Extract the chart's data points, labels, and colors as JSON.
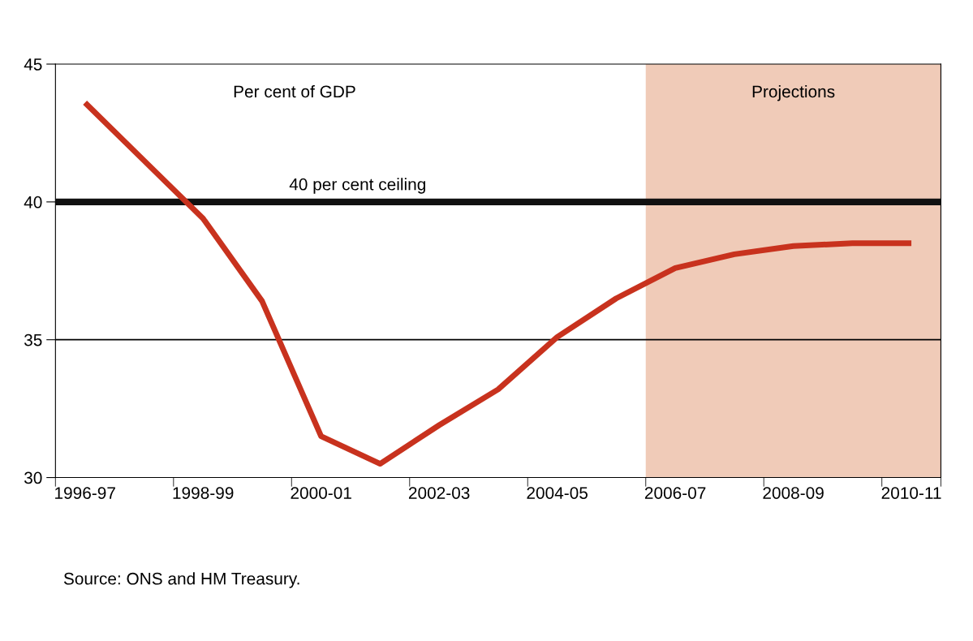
{
  "chart_data": {
    "type": "line",
    "categories": [
      "1996-97",
      null,
      "1998-99",
      null,
      "2000-01",
      null,
      "2002-03",
      null,
      "2004-05",
      null,
      "2006-07",
      null,
      "2008-09",
      null,
      "2010-11"
    ],
    "series": [
      {
        "color": "#c8321e",
        "values": [
          43.6,
          41.5,
          39.4,
          36.4,
          31.5,
          30.5,
          31.9,
          33.2,
          35.1,
          36.5,
          37.6,
          38.1,
          38.4,
          38.5,
          38.5
        ]
      }
    ],
    "ylim": [
      30,
      45
    ],
    "yticks": [
      30,
      35,
      40,
      45
    ],
    "marker": "none",
    "line_style": "solid",
    "ref_lines": [
      {
        "axis": "y",
        "value": 40,
        "label": "40 per cent ceiling",
        "color": "#111111"
      },
      {
        "axis": "y",
        "value": 35,
        "color": "#000000"
      }
    ],
    "bands": [
      {
        "axis": "x",
        "from": "2006-07",
        "to": "2010-11",
        "label": "Projections",
        "color": "#f0cbb8"
      }
    ],
    "annotations": [
      "Per cent of GDP",
      "Source: ONS and HM Treasury."
    ]
  }
}
